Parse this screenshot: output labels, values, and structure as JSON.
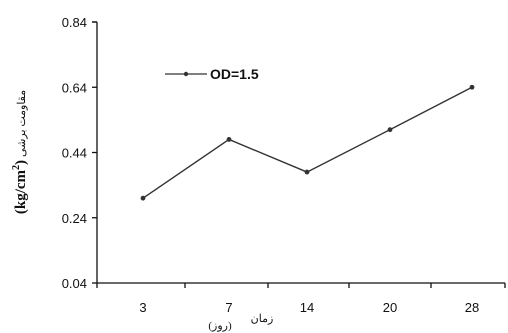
{
  "chart_data": {
    "type": "line",
    "categories": [
      "3",
      "7",
      "14",
      "20",
      "28"
    ],
    "series": [
      {
        "name": "OD=1.5",
        "values": [
          0.3,
          0.48,
          0.38,
          0.51,
          0.64
        ]
      }
    ],
    "ylim": [
      0.04,
      0.84
    ],
    "yticks": [
      "0.04",
      "0.24",
      "0.44",
      "0.64",
      "0.84"
    ],
    "ylabel": {
      "unit_prefix": "(kg/cm",
      "unit_exp": "2",
      "unit_suffix": ")",
      "text": "مقاومت برشی"
    },
    "xlabel": {
      "text": "زمان",
      "unit": "(روز)"
    },
    "legend_position": "top-left",
    "grid": false,
    "colors": {
      "line": "#333333",
      "axis": "#111111"
    }
  }
}
